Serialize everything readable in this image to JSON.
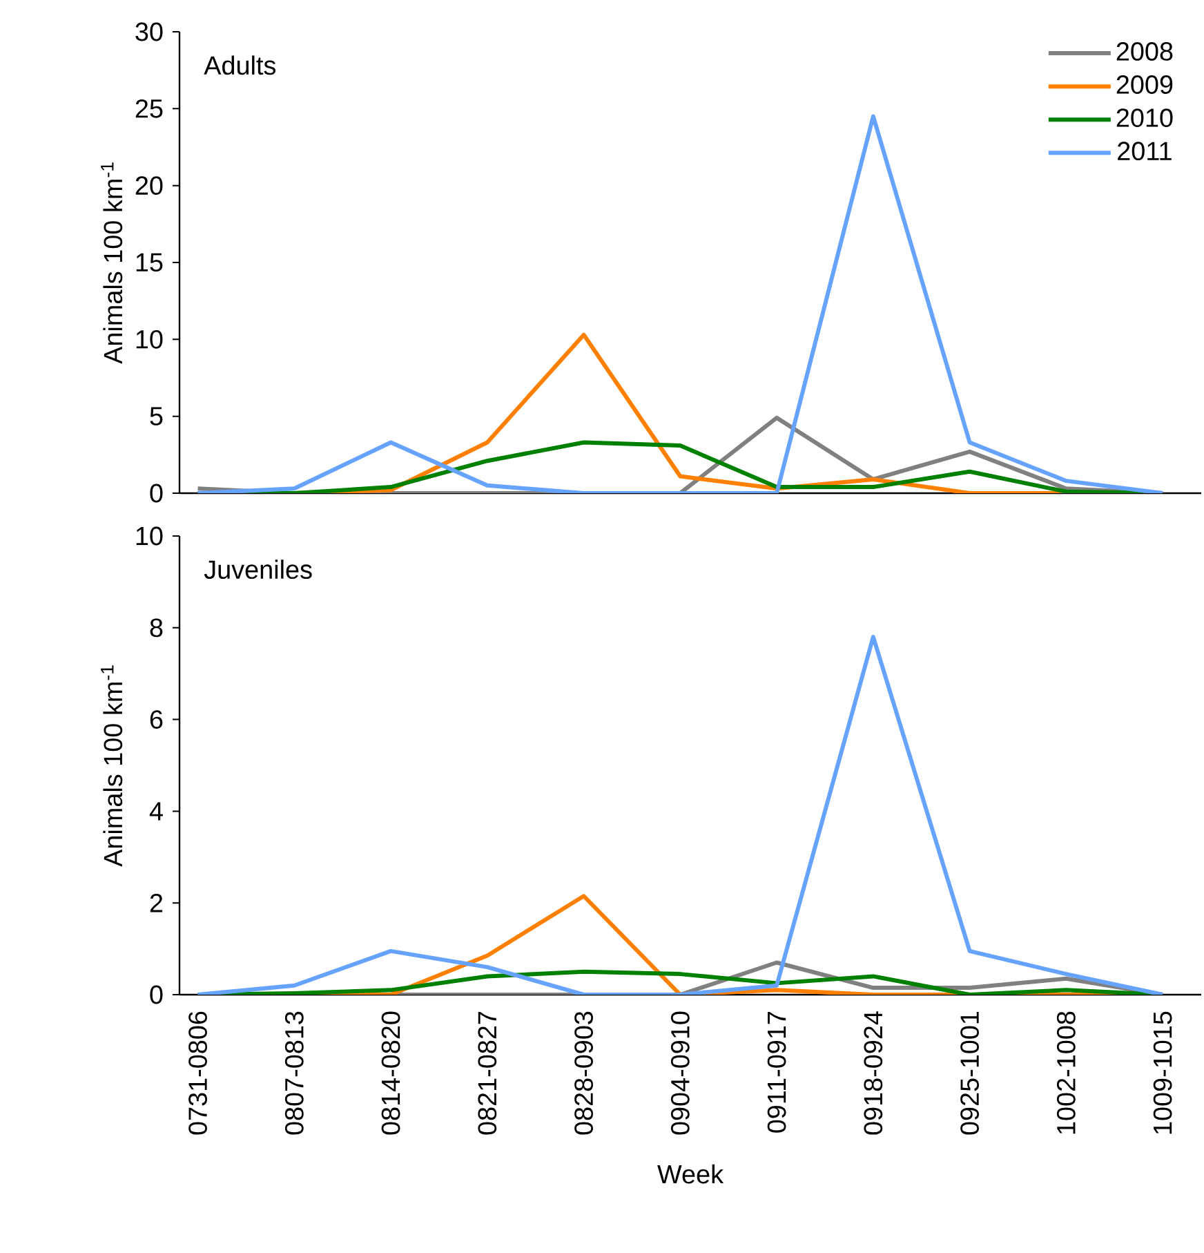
{
  "chart_data": [
    {
      "type": "line",
      "title": "Adults",
      "ylabel": "Animals 100 km$^{-1}$",
      "categories": [
        null,
        null,
        null,
        null,
        null,
        null,
        null,
        null,
        null,
        null,
        null
      ],
      "series": [
        {
          "name": "2008",
          "color": "#808080",
          "values": [
            0.3,
            0,
            0,
            0,
            0,
            0,
            4.9,
            0.9,
            2.7,
            0.3,
            0
          ]
        },
        {
          "name": "2009",
          "color": "#ff8000",
          "values": [
            0,
            0,
            0.2,
            3.3,
            10.3,
            1.1,
            0.3,
            0.9,
            0,
            0,
            0
          ]
        },
        {
          "name": "2010",
          "color": "#008000",
          "values": [
            0,
            0,
            0.4,
            2.1,
            3.3,
            3.1,
            0.4,
            0.4,
            1.4,
            0.1,
            0
          ]
        },
        {
          "name": "2011",
          "color": "#66a3ff",
          "values": [
            0,
            0.3,
            3.3,
            0.5,
            0,
            0,
            0,
            24.5,
            3.3,
            0.8,
            0
          ]
        }
      ],
      "ylim": [
        0,
        30
      ],
      "yticks": [
        0,
        5,
        10,
        15,
        20,
        25,
        30
      ],
      "legend": "top right",
      "tick_labels": "y"
    },
    {
      "type": "line",
      "title": "Juveniles",
      "ylabel": "Animals 100 km$^{-1}$",
      "xlabel": "Week",
      "categories": [
        "0731-0806",
        "0807-0813",
        "0814-0820",
        "0821-0827",
        "0828-0903",
        "0904-0910",
        "0911-0917",
        "0918-0924",
        "0925-1001",
        "1002-1008",
        "1009-1015"
      ],
      "series": [
        {
          "color": "#808080",
          "values": [
            0,
            0,
            0,
            0,
            0,
            0,
            0.7,
            0.15,
            0.15,
            0.35,
            0
          ]
        },
        {
          "color": "#ff8000",
          "values": [
            0,
            0,
            0,
            0.85,
            2.15,
            0,
            0.1,
            0,
            0,
            0,
            0
          ]
        },
        {
          "color": "#008000",
          "values": [
            0,
            0.03,
            0.1,
            0.4,
            0.5,
            0.45,
            0.25,
            0.4,
            0,
            0.1,
            0
          ]
        },
        {
          "color": "#66a3ff",
          "values": [
            0,
            0.2,
            0.95,
            0.6,
            0,
            0,
            0.2,
            7.8,
            0.95,
            0.45,
            0
          ]
        }
      ],
      "ylim": [
        0,
        10
      ],
      "yticks": [
        0,
        2,
        4,
        6,
        8,
        10
      ]
    }
  ]
}
